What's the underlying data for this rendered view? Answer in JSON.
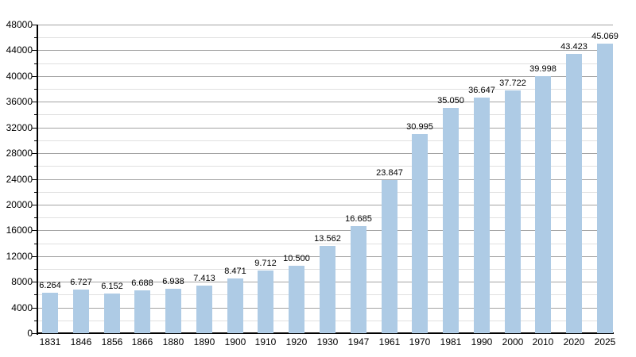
{
  "chart_data": {
    "type": "bar",
    "title": "",
    "xlabel": "",
    "ylabel": "",
    "categories": [
      "1831",
      "1846",
      "1856",
      "1866",
      "1880",
      "1890",
      "1900",
      "1910",
      "1920",
      "1930",
      "1947",
      "1961",
      "1970",
      "1981",
      "1990",
      "2000",
      "2010",
      "2020",
      "2025"
    ],
    "values": [
      6264,
      6727,
      6152,
      6688,
      6938,
      7413,
      8471,
      9712,
      10500,
      13562,
      16685,
      23847,
      30995,
      35050,
      36647,
      37722,
      39998,
      43423,
      45069
    ],
    "value_labels": [
      "6.264",
      "6.727",
      "6.152",
      "6.688",
      "6.938",
      "7.413",
      "8.471",
      "9.712",
      "10.500",
      "13.562",
      "16.685",
      "23.847",
      "30.995",
      "35.050",
      "36.647",
      "37.722",
      "39.998",
      "43.423",
      "45.069"
    ],
    "ylim": [
      0,
      48000
    ],
    "ytick_major": 4000,
    "ytick_minor": 2000,
    "ytick_labels": [
      "0",
      "4000",
      "8000",
      "12000",
      "16000",
      "20000",
      "24000",
      "28000",
      "32000",
      "36000",
      "40000",
      "44000",
      "48000"
    ],
    "grid": true,
    "legend": false,
    "colors": {
      "bar_fill": "#aecbe5",
      "major_grid": "#a3a3a3",
      "minor_grid": "#e0e0e0",
      "axis": "#000000",
      "text": "#000000",
      "background": "#ffffff"
    }
  }
}
